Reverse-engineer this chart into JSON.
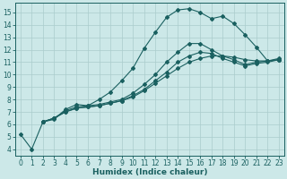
{
  "title": "",
  "xlabel": "Humidex (Indice chaleur)",
  "ylabel": "",
  "background_color": "#cce8e8",
  "grid_color": "#aacccc",
  "line_color": "#1a6060",
  "xlim": [
    -0.5,
    23.5
  ],
  "ylim": [
    3.5,
    15.8
  ],
  "xticks": [
    0,
    1,
    2,
    3,
    4,
    5,
    6,
    7,
    8,
    9,
    10,
    11,
    12,
    13,
    14,
    15,
    16,
    17,
    18,
    19,
    20,
    21,
    22,
    23
  ],
  "yticks": [
    4,
    5,
    6,
    7,
    8,
    9,
    10,
    11,
    12,
    13,
    14,
    15
  ],
  "curve1_x": [
    0,
    1,
    2,
    3,
    4,
    5,
    6,
    7,
    8,
    9,
    10,
    11,
    12,
    13,
    14,
    15,
    16,
    17,
    18,
    19,
    20,
    21,
    22,
    23
  ],
  "curve1_y": [
    5.2,
    4.0,
    6.2,
    6.4,
    7.2,
    7.6,
    7.5,
    8.0,
    8.6,
    9.5,
    10.5,
    12.1,
    13.4,
    14.6,
    15.2,
    15.3,
    15.0,
    14.5,
    14.7,
    14.1,
    13.2,
    12.2,
    11.1,
    11.2
  ],
  "curve2_x": [
    2,
    3,
    4,
    5,
    6,
    7,
    8,
    9,
    10,
    11,
    12,
    13,
    14,
    15,
    16,
    17,
    18,
    19,
    20,
    21,
    22,
    23
  ],
  "curve2_y": [
    6.2,
    6.5,
    7.1,
    7.4,
    7.5,
    7.6,
    7.8,
    8.0,
    8.5,
    9.2,
    10.0,
    11.0,
    11.8,
    12.5,
    12.5,
    12.0,
    11.5,
    11.2,
    10.8,
    11.0,
    11.1,
    11.3
  ],
  "curve3_x": [
    2,
    3,
    4,
    5,
    6,
    7,
    8,
    9,
    10,
    11,
    12,
    13,
    14,
    15,
    16,
    17,
    18,
    19,
    20,
    21,
    22,
    23
  ],
  "curve3_y": [
    6.2,
    6.5,
    7.0,
    7.3,
    7.4,
    7.5,
    7.7,
    7.9,
    8.3,
    8.8,
    9.5,
    10.2,
    11.0,
    11.5,
    11.8,
    11.7,
    11.3,
    11.0,
    10.7,
    10.9,
    11.0,
    11.2
  ],
  "curve4_x": [
    2,
    3,
    4,
    5,
    6,
    7,
    8,
    9,
    10,
    11,
    12,
    13,
    14,
    15,
    16,
    17,
    18,
    19,
    20,
    21,
    22,
    23
  ],
  "curve4_y": [
    6.2,
    6.5,
    7.0,
    7.3,
    7.4,
    7.5,
    7.7,
    7.9,
    8.2,
    8.7,
    9.3,
    9.9,
    10.5,
    11.0,
    11.3,
    11.5,
    11.5,
    11.4,
    11.2,
    11.1,
    11.1,
    11.2
  ],
  "tick_fontsize": 5.5,
  "xlabel_fontsize": 6.5
}
